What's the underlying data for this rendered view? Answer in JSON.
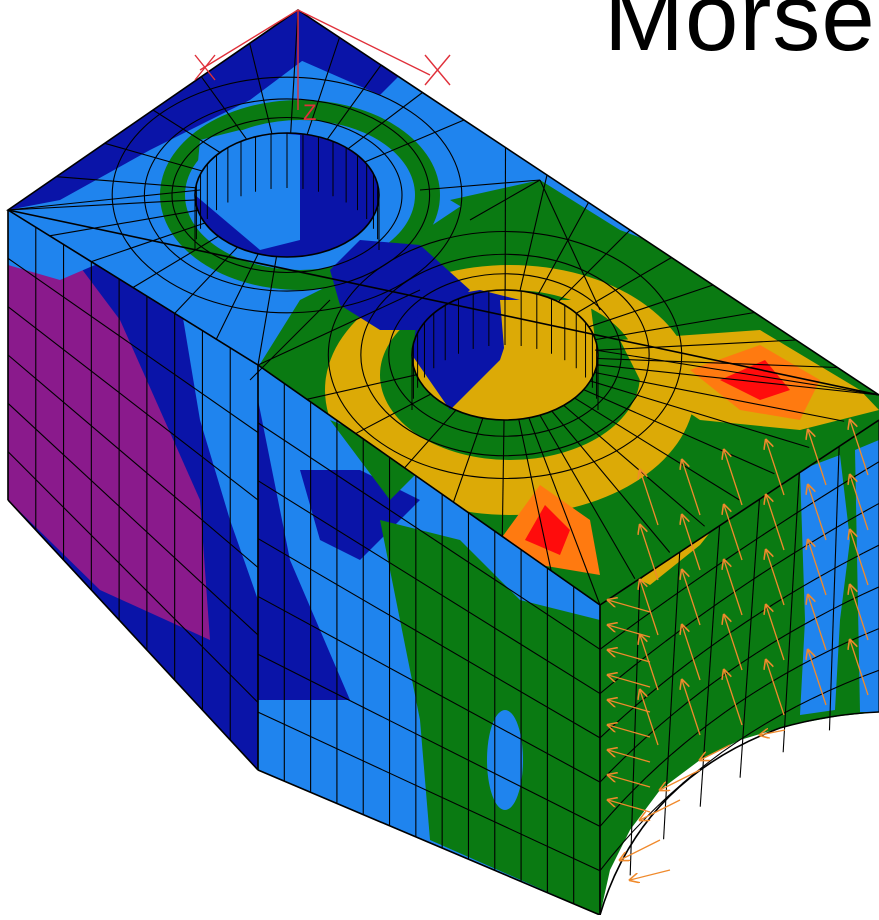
{
  "slide": {
    "title": "Morse"
  },
  "axis": {
    "z_label": "Z",
    "color": "#e0303a"
  },
  "model": {
    "description_icon": "fem-stress-mesh-block",
    "mesh_line_color": "#000000",
    "load_arrow_color": "#f08a2c"
  },
  "contour_colors": {
    "purple": "#8a1a8c",
    "dark_blue": "#0a14a8",
    "light_blue": "#1f84ee",
    "green": "#0a7a12",
    "yellow": "#dcaa06",
    "orange": "#ff7a10",
    "red": "#ff0c0c"
  }
}
